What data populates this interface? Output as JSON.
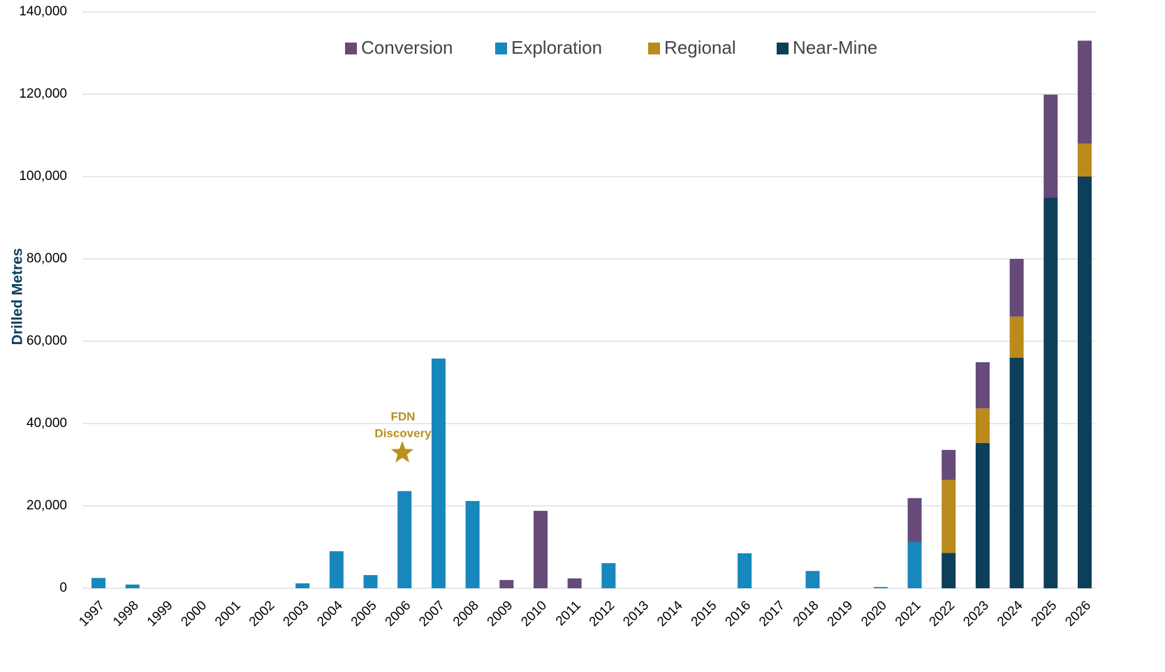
{
  "chart_data": {
    "type": "stacked-bar",
    "ylabel": "Drilled Metres",
    "annotation": [
      "FDN",
      "Discovery"
    ],
    "categories": [
      "1997",
      "1998",
      "1999",
      "2000",
      "2001",
      "2002",
      "2003",
      "2004",
      "2005",
      "2006",
      "2007",
      "2008",
      "2009",
      "2010",
      "2011",
      "2012",
      "2013",
      "2014",
      "2015",
      "2016",
      "2017",
      "2018",
      "2019",
      "2020",
      "2021",
      "2022",
      "2023",
      "2024",
      "2025",
      "2026"
    ],
    "series": [
      {
        "name": "Conversion",
        "color": "#654a7a",
        "values": [
          null,
          null,
          null,
          null,
          null,
          null,
          null,
          null,
          null,
          null,
          null,
          null,
          2000,
          18800,
          2400,
          null,
          null,
          null,
          null,
          null,
          null,
          null,
          null,
          null,
          10700,
          7300,
          11200,
          14000,
          25000,
          25000
        ]
      },
      {
        "name": "Exploration",
        "color": "#1787bd",
        "values": [
          2500,
          900,
          null,
          null,
          null,
          null,
          1200,
          9000,
          3200,
          23600,
          55800,
          21200,
          null,
          null,
          null,
          6100,
          null,
          null,
          null,
          8500,
          null,
          4200,
          null,
          300,
          11200,
          null,
          null,
          null,
          null,
          null
        ]
      },
      {
        "name": "Regional",
        "color": "#bb8a1d",
        "values": [
          null,
          null,
          null,
          null,
          null,
          null,
          null,
          null,
          null,
          null,
          null,
          null,
          null,
          null,
          null,
          null,
          null,
          null,
          null,
          null,
          null,
          null,
          null,
          null,
          null,
          17700,
          8400,
          10000,
          null,
          8000
        ]
      },
      {
        "name": "Near-Mine",
        "color": "#0d3f5a",
        "values": [
          null,
          null,
          null,
          null,
          null,
          null,
          null,
          null,
          null,
          null,
          null,
          null,
          null,
          null,
          null,
          null,
          null,
          null,
          null,
          null,
          null,
          null,
          null,
          null,
          null,
          8600,
          35300,
          56000,
          94900,
          100000
        ]
      }
    ],
    "ylim": [
      0,
      140000
    ],
    "yticks": [
      0,
      {
        "value": 20000,
        "label": "20,000"
      },
      {
        "value": 40000,
        "label": "40,000"
      },
      {
        "value": 60000,
        "label": "60,000"
      },
      {
        "value": 80000,
        "label": "80,000"
      },
      {
        "value": 100000,
        "label": "100,000"
      },
      {
        "value": 120000,
        "label": "120,000"
      },
      {
        "value": 140000,
        "label": "140,000"
      }
    ],
    "grid": true,
    "legend": "top"
  }
}
